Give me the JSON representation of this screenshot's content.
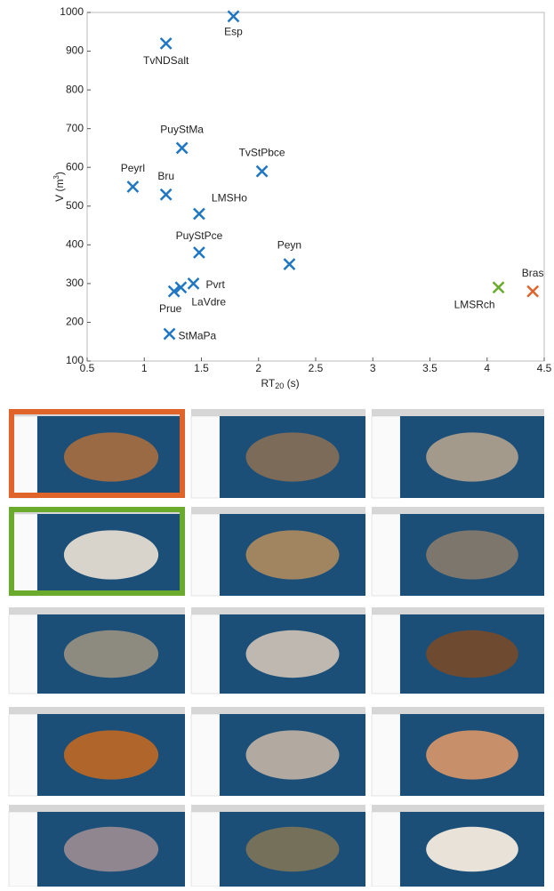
{
  "chart_data": {
    "type": "scatter",
    "xlabel": [
      "RT",
      "20",
      " (s)"
    ],
    "ylabel": [
      "V (m",
      "3",
      ")"
    ],
    "xlim": [
      0.5,
      4.5
    ],
    "xticks": [
      0.5,
      1,
      1.5,
      2,
      2.5,
      3,
      3.5,
      4,
      4.5
    ],
    "ylim": [
      100,
      1000
    ],
    "yticks": [
      100,
      200,
      300,
      400,
      500,
      600,
      700,
      800,
      900,
      1000
    ],
    "grid": false,
    "points": [
      {
        "label": "Esp",
        "x": 1.78,
        "y": 990,
        "color": "#1f77c4"
      },
      {
        "label": "TvNDSalt",
        "x": 1.19,
        "y": 920,
        "color": "#1f77c4"
      },
      {
        "label": "PuyStMa",
        "x": 1.33,
        "y": 650,
        "color": "#1f77c4"
      },
      {
        "label": "TvStPbce",
        "x": 2.03,
        "y": 590,
        "color": "#1f77c4"
      },
      {
        "label": "Peyrl",
        "x": 0.9,
        "y": 550,
        "color": "#1f77c4"
      },
      {
        "label": "Bru",
        "x": 1.19,
        "y": 530,
        "color": "#1f77c4"
      },
      {
        "label": "LMSHo",
        "x": 1.48,
        "y": 480,
        "color": "#1f77c4"
      },
      {
        "label": "PuyStPce",
        "x": 1.48,
        "y": 380,
        "color": "#1f77c4"
      },
      {
        "label": "Peyn",
        "x": 2.27,
        "y": 350,
        "color": "#1f77c4"
      },
      {
        "label": "Pvrt",
        "x": 1.43,
        "y": 300,
        "color": "#1f77c4"
      },
      {
        "label": "LaVdre",
        "x": 1.32,
        "y": 290,
        "color": "#1f77c4"
      },
      {
        "label": "Prue",
        "x": 1.26,
        "y": 280,
        "color": "#1f77c4"
      },
      {
        "label": "StMaPa",
        "x": 1.22,
        "y": 170,
        "color": "#1f77c4"
      },
      {
        "label": "LMSRch",
        "x": 4.1,
        "y": 290,
        "color": "#6aaa2c"
      },
      {
        "label": "Bras",
        "x": 4.4,
        "y": 280,
        "color": "#e0632a"
      }
    ]
  }
}
